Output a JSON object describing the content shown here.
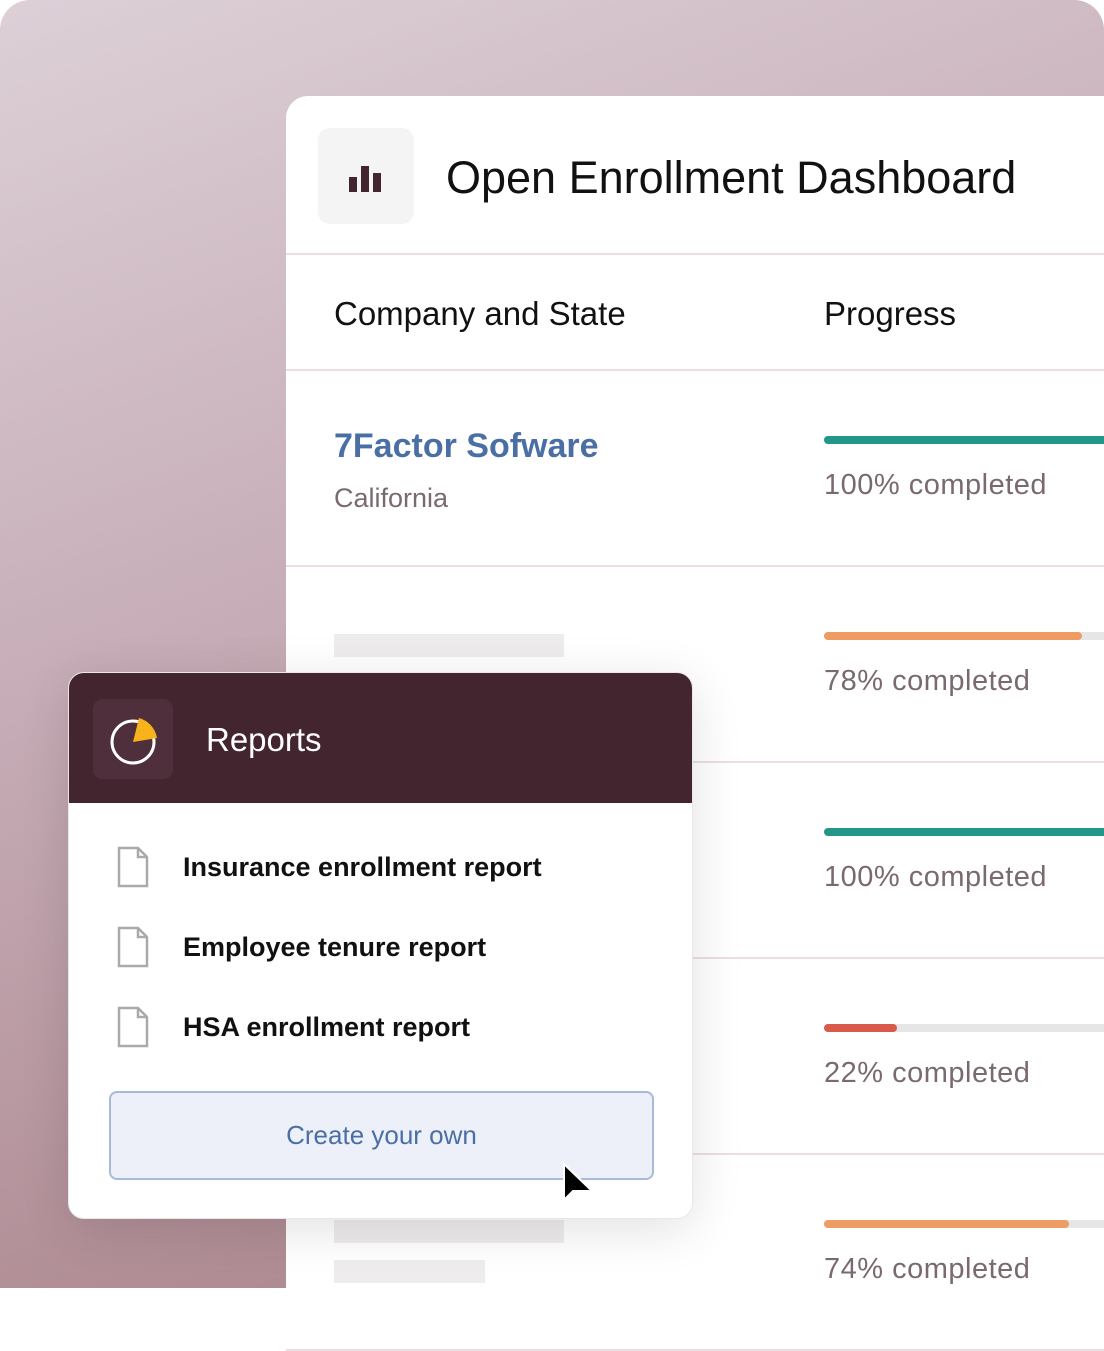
{
  "dashboard": {
    "title": "Open Enrollment Dashboard",
    "icon": "bar-chart-icon",
    "columns": [
      "Company and State",
      "Progress"
    ],
    "rows": [
      {
        "company": "7Factor Sofware",
        "state": "California",
        "progress": 100,
        "progress_label": "100% completed",
        "color": "#23968a"
      },
      {
        "company": "",
        "state": "",
        "progress": 78,
        "progress_label": "78% completed",
        "color": "#ee9c64"
      },
      {
        "company": "",
        "state": "",
        "progress": 100,
        "progress_label": "100% completed",
        "color": "#23968a"
      },
      {
        "company": "",
        "state": "",
        "progress": 22,
        "progress_label": "22% completed",
        "color": "#d95a4a"
      },
      {
        "company": "",
        "state": "",
        "progress": 74,
        "progress_label": "74% completed",
        "color": "#ee9c64"
      }
    ]
  },
  "reports": {
    "title": "Reports",
    "icon": "pie-clock-icon",
    "items": [
      "Insurance enrollment report",
      "Employee tenure report",
      "HSA enrollment report"
    ],
    "create_label": "Create your own"
  }
}
